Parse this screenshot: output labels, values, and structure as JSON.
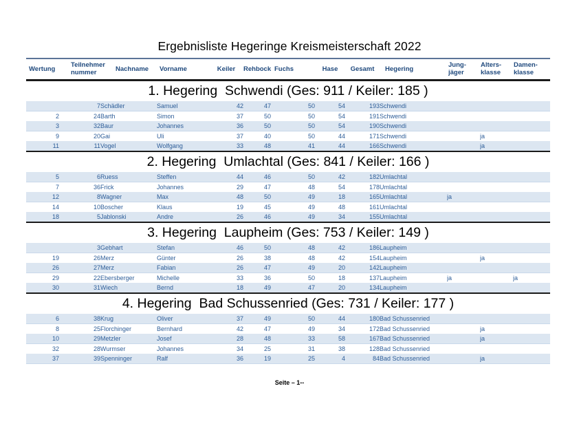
{
  "title": "Ergebnisliste Hegeringe Kreismeisterschaft 2022",
  "footer": "Seite – 1--",
  "colors": {
    "header_text": "#1f497d",
    "data_text": "#2e5e99",
    "row_stripe": "#dce6f1",
    "border_dark": "#1a1a1a",
    "border_blue": "#5b7397"
  },
  "columns": [
    {
      "key": "wertung",
      "label": "Wertung"
    },
    {
      "key": "nummer",
      "label": "Teilnehmer\nnummer"
    },
    {
      "key": "nachname",
      "label": "Nachname"
    },
    {
      "key": "vorname",
      "label": "Vorname"
    },
    {
      "key": "keiler",
      "label": "Keiler"
    },
    {
      "key": "rehbock",
      "label": "Rehbock"
    },
    {
      "key": "fuchs",
      "label": "Fuchs"
    },
    {
      "key": "hase",
      "label": "Hase"
    },
    {
      "key": "gesamt",
      "label": "Gesamt"
    },
    {
      "key": "hegering",
      "label": "Hegering"
    },
    {
      "key": "jung",
      "label": "Jung-\njäger"
    },
    {
      "key": "alters",
      "label": "Alters-\nklasse"
    },
    {
      "key": "damen",
      "label": "Damen-\nklasse"
    }
  ],
  "sections": [
    {
      "heading": "1. Hegering  Schwendi (Ges: 911 / Keiler: 185 )",
      "hegering": "Schwendi",
      "ges": 911,
      "keiler_sum": 185,
      "rows": [
        [
          "",
          7,
          "Schädler",
          "Samuel",
          42,
          47,
          50,
          54,
          193,
          "Schwendi",
          "",
          "",
          ""
        ],
        [
          "2",
          24,
          "Barth",
          "Simon",
          37,
          50,
          50,
          54,
          191,
          "Schwendi",
          "",
          "",
          ""
        ],
        [
          "3",
          32,
          "Baur",
          "Johannes",
          36,
          50,
          50,
          54,
          190,
          "Schwendi",
          "",
          "",
          ""
        ],
        [
          "9",
          20,
          "Gai",
          "Uli",
          37,
          40,
          50,
          44,
          171,
          "Schwendi",
          "",
          "ja",
          ""
        ],
        [
          "11",
          11,
          "Vogel",
          "Wolfgang",
          33,
          48,
          41,
          44,
          166,
          "Schwendi",
          "",
          "ja",
          ""
        ]
      ]
    },
    {
      "heading": "2. Hegering  Umlachtal (Ges: 841 / Keiler: 166 )",
      "hegering": "Umlachtal",
      "ges": 841,
      "keiler_sum": 166,
      "rows": [
        [
          "5",
          6,
          "Ruess",
          "Steffen",
          44,
          46,
          50,
          42,
          182,
          "Umlachtal",
          "",
          "",
          ""
        ],
        [
          "7",
          36,
          "Frick",
          "Johannes",
          29,
          47,
          48,
          54,
          178,
          "Umlachtal",
          "",
          "",
          ""
        ],
        [
          "12",
          8,
          "Wagner",
          "Max",
          48,
          50,
          49,
          18,
          165,
          "Umlachtal",
          "ja",
          "",
          ""
        ],
        [
          "14",
          10,
          "Boscher",
          "Klaus",
          19,
          45,
          49,
          48,
          161,
          "Umlachtal",
          "",
          "",
          ""
        ],
        [
          "18",
          5,
          "Jablonski",
          "Andre",
          26,
          46,
          49,
          34,
          155,
          "Umlachtal",
          "",
          "",
          ""
        ]
      ]
    },
    {
      "heading": "3. Hegering  Laupheim (Ges: 753 / Keiler: 149 )",
      "hegering": "Laupheim",
      "ges": 753,
      "keiler_sum": 149,
      "rows": [
        [
          "",
          3,
          "Gebhart",
          "Stefan",
          46,
          50,
          48,
          42,
          186,
          "Laupheim",
          "",
          "",
          ""
        ],
        [
          "19",
          26,
          "Merz",
          "Günter",
          26,
          38,
          48,
          42,
          154,
          "Laupheim",
          "",
          "ja",
          ""
        ],
        [
          "26",
          27,
          "Merz",
          "Fabian",
          26,
          47,
          49,
          20,
          142,
          "Laupheim",
          "",
          "",
          ""
        ],
        [
          "29",
          22,
          "Ebersberger",
          "Michelle",
          33,
          36,
          50,
          18,
          137,
          "Laupheim",
          "ja",
          "",
          "ja"
        ],
        [
          "30",
          31,
          "Wiech",
          "Bernd",
          18,
          49,
          47,
          20,
          134,
          "Laupheim",
          "",
          "",
          ""
        ]
      ]
    },
    {
      "heading": "4. Hegering  Bad Schussenried (Ges: 731 / Keiler: 177 )",
      "hegering": "Bad Schussenried",
      "ges": 731,
      "keiler_sum": 177,
      "rows": [
        [
          "6",
          38,
          "Krug",
          "Oliver",
          37,
          49,
          50,
          44,
          180,
          "Bad Schussenried",
          "",
          "",
          ""
        ],
        [
          "8",
          25,
          "Florchinger",
          "Bernhard",
          42,
          47,
          49,
          34,
          172,
          "Bad Schussenried",
          "",
          "ja",
          ""
        ],
        [
          "10",
          29,
          "Metzler",
          "Josef",
          28,
          48,
          33,
          58,
          167,
          "Bad Schussenried",
          "",
          "ja",
          ""
        ],
        [
          "32",
          28,
          "Wurmser",
          "Johannes",
          34,
          25,
          31,
          38,
          128,
          "Bad Schussenried",
          "",
          "",
          ""
        ],
        [
          "37",
          39,
          "Spenninger",
          "Ralf",
          36,
          19,
          25,
          4,
          84,
          "Bad Schussenried",
          "",
          "ja",
          ""
        ]
      ]
    }
  ]
}
